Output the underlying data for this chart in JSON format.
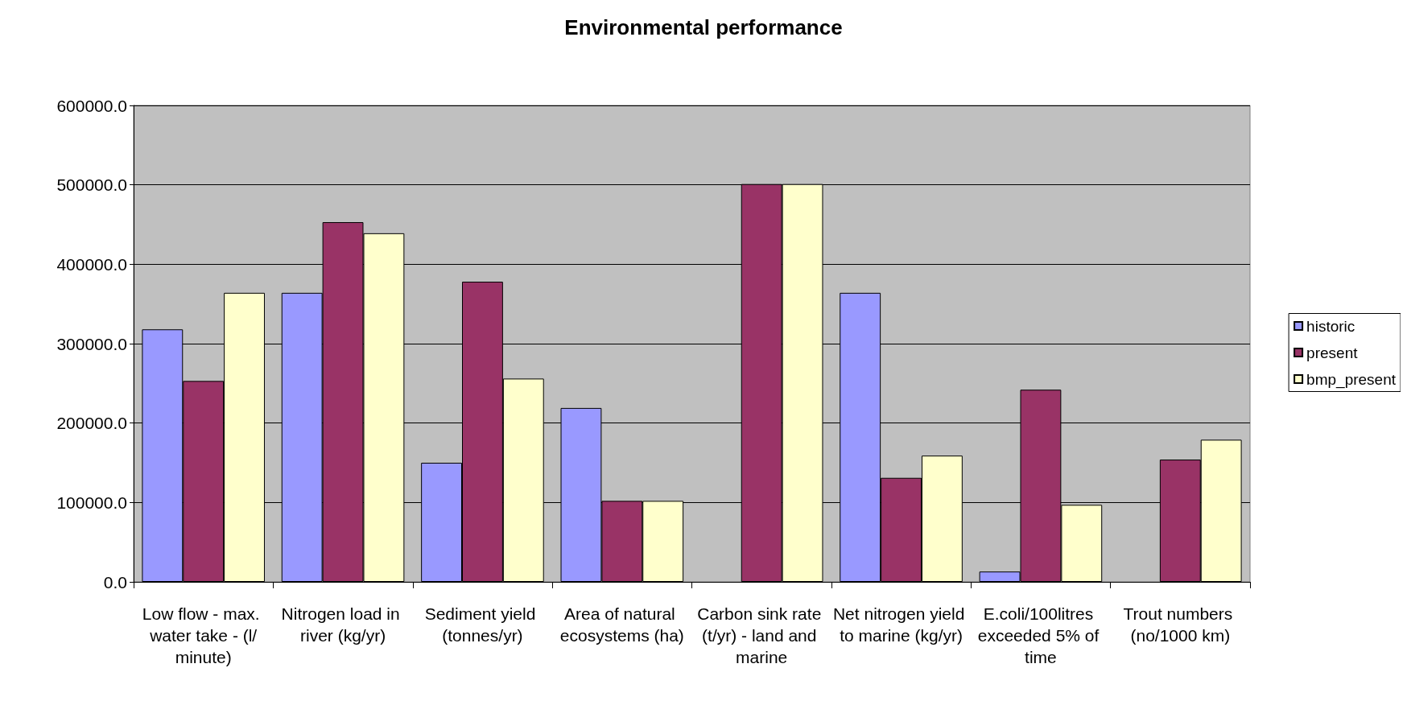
{
  "chart_data": {
    "type": "bar",
    "title": "Environmental performance",
    "categories": [
      "Low flow - max. water take - (l/minute)",
      "Nitrogen load in river (kg/yr)",
      "Sediment yield (tonnes/yr)",
      "Area of natural ecosystems (ha)",
      "Carbon sink rate (t/yr) - land and marine",
      "Net nitrogen yield to marine (kg/yr)",
      "E.coli/100litres exceeded 5% of time",
      "Trout numbers (no/1000 km)"
    ],
    "series": [
      {
        "name": "historic",
        "color": "#9999ff",
        "values": [
          318000,
          364000,
          150000,
          219000,
          null,
          364000,
          13000,
          null
        ]
      },
      {
        "name": "present",
        "color": "#993366",
        "values": [
          253000,
          453000,
          378000,
          102000,
          501000,
          131000,
          242000,
          154000
        ]
      },
      {
        "name": "bmp_present",
        "color": "#ffffcc",
        "values": [
          364000,
          439000,
          256000,
          102000,
          501000,
          159000,
          97000,
          179000
        ]
      }
    ],
    "ylim": [
      0,
      600000
    ],
    "yticks": [
      {
        "value": 0,
        "label": "0.0"
      },
      {
        "value": 100000,
        "label": "100000.0"
      },
      {
        "value": 200000,
        "label": "200000.0"
      },
      {
        "value": 300000,
        "label": "300000.0"
      },
      {
        "value": 400000,
        "label": "400000.0"
      },
      {
        "value": 500000,
        "label": "500000.0"
      },
      {
        "value": 600000,
        "label": "600000.0"
      }
    ],
    "grid": "y",
    "legend": "right"
  }
}
